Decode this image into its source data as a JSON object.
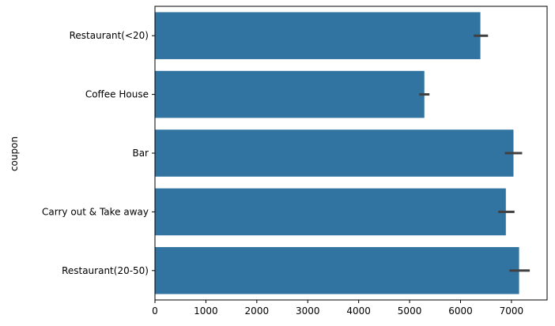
{
  "chart_data": {
    "type": "bar",
    "orientation": "horizontal",
    "categories": [
      "Restaurant(<20)",
      "Coffee House",
      "Bar",
      "Carry out & Take away",
      "Restaurant(20-50)"
    ],
    "values": [
      6390,
      5290,
      7040,
      6890,
      7150
    ],
    "error_bars": [
      [
        6260,
        6540
      ],
      [
        5190,
        5390
      ],
      [
        6870,
        7210
      ],
      [
        6740,
        7060
      ],
      [
        6960,
        7360
      ]
    ],
    "xlabel": "",
    "ylabel": "coupon",
    "xlim": [
      0,
      7700
    ],
    "xticks": [
      0,
      1000,
      2000,
      3000,
      4000,
      5000,
      6000,
      7000
    ],
    "grid": false,
    "colors": {
      "bar": "#3274a1",
      "errorbar": "#404040",
      "axis": "#000000"
    }
  }
}
